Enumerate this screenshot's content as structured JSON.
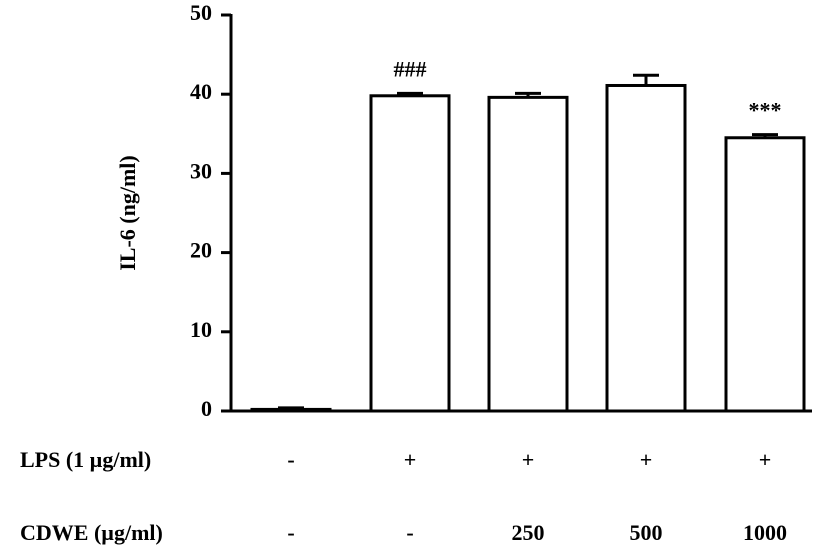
{
  "chart_data": {
    "type": "bar",
    "y_label": "IL-6 (ng/ml)",
    "values": [
      0.2,
      39.8,
      39.6,
      41.1,
      34.5
    ],
    "errors": [
      0.2,
      0.3,
      0.5,
      1.3,
      0.4
    ],
    "annotations": [
      null,
      "###",
      null,
      null,
      "***"
    ],
    "color": "#ffffff",
    "ylim": [
      0,
      50
    ],
    "yticks": [
      0,
      10,
      20,
      30,
      40,
      50
    ],
    "treatments": [
      {
        "label": "LPS (1 µg/ml)",
        "cells": [
          "-",
          "+",
          "+",
          "+",
          "+"
        ]
      },
      {
        "label": "CDWE (µg/ml)",
        "cells": [
          "-",
          "-",
          "250",
          "500",
          "1000"
        ]
      }
    ]
  }
}
